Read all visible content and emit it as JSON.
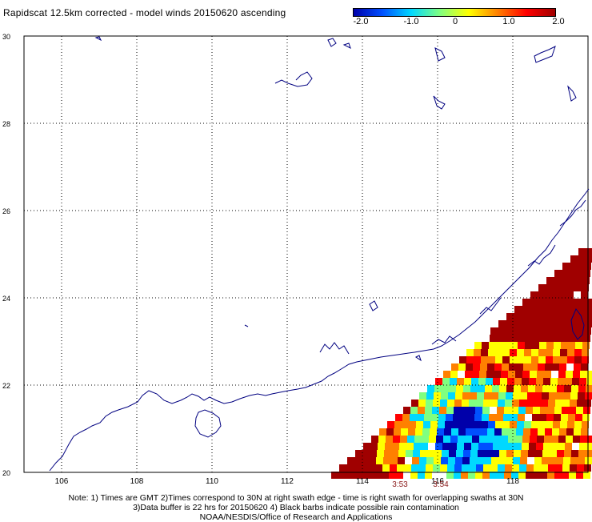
{
  "title": "Rapidscat 12.5km corrected - model winds 20150620 ascending",
  "colorbar": {
    "ticks": [
      "-2.0",
      "-1.0",
      "0",
      "1.0",
      "2.0"
    ],
    "colors": [
      "#0000aa",
      "#0050ff",
      "#00d8ff",
      "#80ff80",
      "#ffff00",
      "#ff8000",
      "#ff0000",
      "#a00000"
    ]
  },
  "map": {
    "lon_ticks": [
      "106",
      "108",
      "110",
      "112",
      "114",
      "116",
      "118"
    ],
    "lat_ticks": [
      "20",
      "22",
      "24",
      "26",
      "28",
      "30"
    ],
    "lon_range": [
      105,
      120
    ],
    "lat_range": [
      20,
      30
    ],
    "grid": true,
    "coastline_color": "#000080"
  },
  "swath_times": [
    "3:53",
    "3:54"
  ],
  "footer": {
    "line1": "Note: 1) Times are GMT 2)Times correspond to 30N at right swath edge - time is right swath for overlapping swaths at 30N",
    "line2": "3)Data buffer is 22 hrs for 20150620 4) Black barbs indicate possible rain contamination",
    "line3": "NOAA/NESDIS/Office of Research and Applications"
  }
}
